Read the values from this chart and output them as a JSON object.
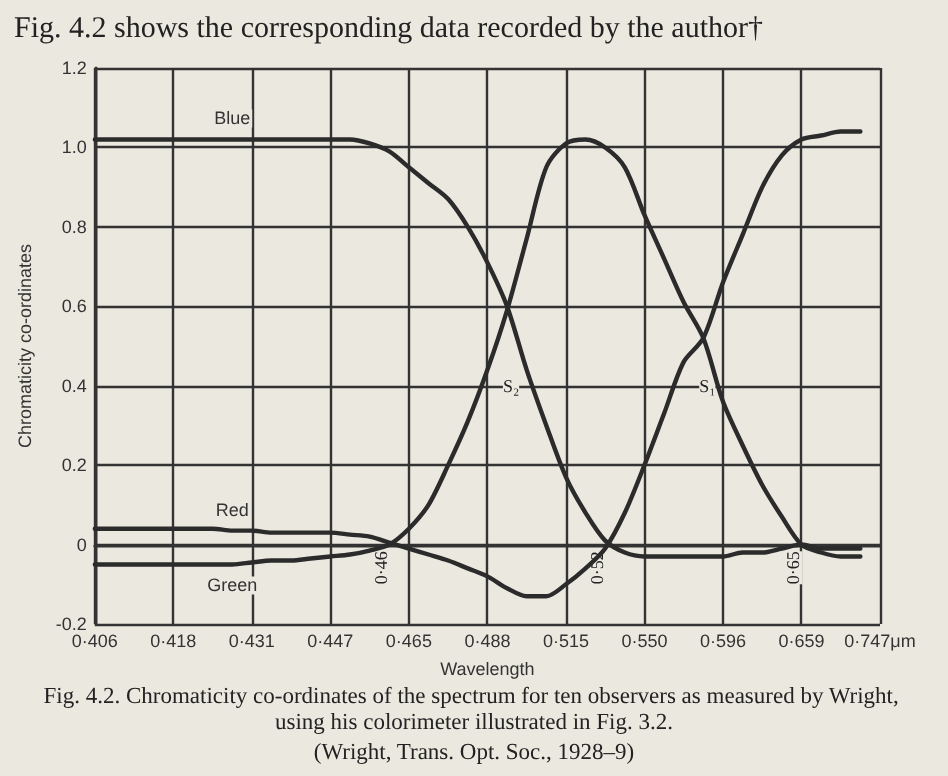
{
  "chart_data": {
    "type": "line",
    "title": "Fig. 4.2 shows the corresponding data recorded by the author†",
    "xlabel": "Wavelength",
    "ylabel": "Chromaticity co-ordinates",
    "categories": [
      "0·406",
      null,
      null,
      null,
      "0·418",
      null,
      null,
      null,
      "0·431",
      null,
      null,
      null,
      "0·447",
      null,
      null,
      null,
      "0·465",
      null,
      null,
      null,
      "0·488",
      null,
      null,
      null,
      "0·515",
      null,
      null,
      null,
      "0·550",
      null,
      null,
      null,
      "0·596",
      null,
      null,
      null,
      "0·659",
      null,
      null,
      null,
      "0·747μm"
    ],
    "series": [
      {
        "name": "Blue",
        "color": "#2b2b2b",
        "values": [
          1.02,
          1.02,
          1.02,
          1.02,
          1.02,
          1.02,
          1.02,
          1.02,
          1.02,
          1.02,
          1.02,
          1.02,
          1.02,
          1.02,
          1.01,
          0.99,
          0.95,
          0.91,
          0.87,
          0.8,
          0.71,
          0.6,
          0.44,
          0.3,
          0.17,
          0.08,
          0.01,
          -0.02,
          -0.03,
          -0.03,
          -0.03,
          -0.03,
          -0.03,
          -0.02,
          -0.02,
          -0.01,
          0,
          -0.01,
          -0.01,
          -0.01,
          null
        ]
      },
      {
        "name": "Red",
        "color": "#2b2b2b",
        "values": [
          0.04,
          0.04,
          0.04,
          0.04,
          0.04,
          0.04,
          0.04,
          0.035,
          0.035,
          0.03,
          0.03,
          0.03,
          0.03,
          0.025,
          0.02,
          0.005,
          -0.01,
          -0.025,
          -0.04,
          -0.06,
          -0.08,
          -0.11,
          -0.13,
          -0.13,
          -0.1,
          -0.06,
          -0.01,
          0.08,
          0.2,
          0.33,
          0.46,
          0.52,
          0.66,
          0.78,
          0.9,
          0.98,
          1.02,
          1.03,
          1.04,
          1.04,
          null
        ]
      },
      {
        "name": "Green",
        "color": "#2b2b2b",
        "values": [
          -0.05,
          -0.05,
          -0.05,
          -0.05,
          -0.05,
          -0.05,
          -0.05,
          -0.05,
          -0.045,
          -0.04,
          -0.04,
          -0.035,
          -0.03,
          -0.025,
          -0.015,
          0,
          0.04,
          0.1,
          0.2,
          0.31,
          0.44,
          0.59,
          0.77,
          0.95,
          1.01,
          1.02,
          1.0,
          0.95,
          0.83,
          0.72,
          0.61,
          0.52,
          0.36,
          0.25,
          0.15,
          0.07,
          0,
          -0.02,
          -0.03,
          -0.03,
          null
        ]
      }
    ],
    "ylim": [
      -0.2,
      1.2
    ],
    "yticks": [
      -0.2,
      0,
      0.2,
      0.4,
      0.6,
      0.8,
      {
        "value": 1.0,
        "label": "1.0"
      },
      1.2
    ],
    "grid": true,
    "legend": false,
    "marker": "none",
    "line_style": "solid",
    "annotations": [
      "S₂",
      "S₁",
      "0·46",
      "0·52",
      "0·65",
      "Fig. 4.2. Chromaticity co-ordinates of the spectrum for ten observers as measured by Wright, using his colorimeter illustrated in Fig. 3.2.",
      "(Wright, Trans. Opt. Soc., 1928–9)"
    ]
  }
}
